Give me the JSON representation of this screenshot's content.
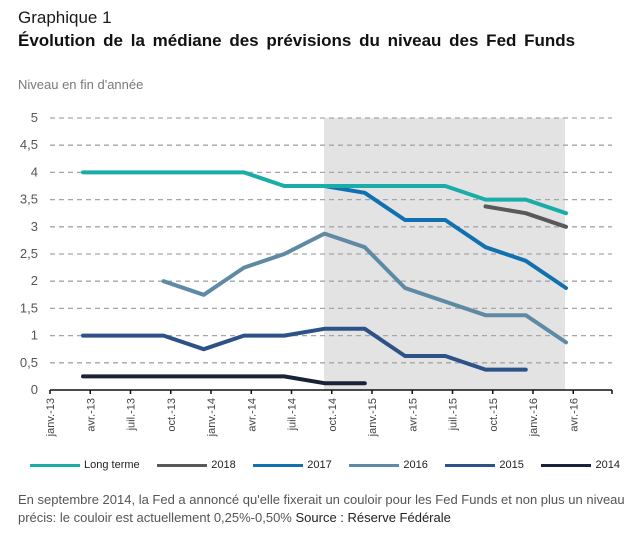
{
  "header": {
    "label": "Graphique 1",
    "title": "Évolution de la médiane des prévisions du niveau des Fed Funds",
    "subtitle": "Niveau en fin d'année"
  },
  "note": {
    "text": "En septembre 2014, la Fed a annoncé qu'elle fixerait un couloir pour les Fed Funds  et non plus un niveau précis: le couloir est actuellement 0,25%-0,50%",
    "source": "Source : Réserve Fédérale"
  },
  "chart_data": {
    "type": "line",
    "title": "Évolution de la médiane des prévisions du niveau des Fed Funds",
    "subtitle": "Niveau en fin d'année",
    "xlabel": "",
    "ylabel": "",
    "ylim": [
      0,
      5
    ],
    "yticks": [
      "0",
      "0,5",
      "1",
      "1,5",
      "2",
      "2,5",
      "3",
      "3,5",
      "4",
      "4,5",
      "5"
    ],
    "xticks": [
      "janv.-13",
      "avr.-13",
      "juil.-13",
      "oct.-13",
      "janv.-14",
      "avr.-14",
      "juil.-14",
      "oct.-14",
      "janv.-15",
      "avr.-15",
      "juil.-15",
      "oct.-15",
      "janv.-16",
      "avr.-16"
    ],
    "grid": "horizontal dashed",
    "shaded_period": {
      "from": "sept.-14",
      "to": "mars-16"
    },
    "legend_position": "bottom",
    "x": [
      "mars-13",
      "juin-13",
      "sept.-13",
      "déc.-13",
      "mars-14",
      "juin-14",
      "sept.-14",
      "déc.-14",
      "mars-15",
      "juin-15",
      "sept.-15",
      "déc.-15",
      "mars-16"
    ],
    "series": [
      {
        "name": "Long terme",
        "color": "#1aada8",
        "values": [
          4,
          4,
          4,
          4,
          4,
          3.75,
          3.75,
          3.75,
          3.75,
          3.75,
          3.5,
          3.5,
          3.25
        ]
      },
      {
        "name": "2018",
        "color": "#595959",
        "values": [
          null,
          null,
          null,
          null,
          null,
          null,
          null,
          null,
          null,
          null,
          3.375,
          3.25,
          3.0
        ]
      },
      {
        "name": "2017",
        "color": "#1070b0",
        "values": [
          null,
          null,
          null,
          null,
          null,
          null,
          3.75,
          3.625,
          3.125,
          3.125,
          2.625,
          2.375,
          1.875
        ]
      },
      {
        "name": "2016",
        "color": "#5f8aa3",
        "values": [
          null,
          null,
          2.0,
          1.75,
          2.25,
          2.5,
          2.875,
          2.625,
          1.875,
          1.625,
          1.375,
          1.375,
          0.875
        ]
      },
      {
        "name": "2015",
        "color": "#2c5288",
        "values": [
          1.0,
          1.0,
          1.0,
          0.75,
          1.0,
          1.0,
          1.125,
          1.125,
          0.625,
          0.625,
          0.375,
          0.375,
          null
        ]
      },
      {
        "name": "2014",
        "color": "#1a2238",
        "values": [
          0.25,
          0.25,
          0.25,
          0.25,
          0.25,
          0.25,
          0.125,
          0.125,
          null,
          null,
          null,
          null,
          null
        ]
      }
    ]
  }
}
